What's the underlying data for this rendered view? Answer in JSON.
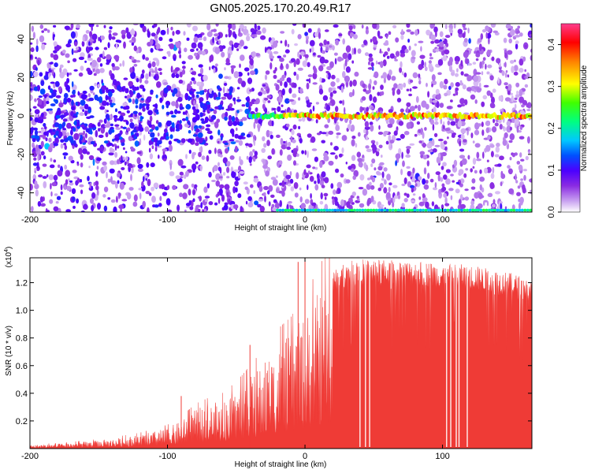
{
  "chart_data": [
    {
      "type": "heatmap",
      "title": "GN05.2025.170.20.49.R17",
      "xlabel": "Height of straight line (km)",
      "ylabel": "Frequency (Hz)",
      "xlim": [
        -200,
        165
      ],
      "ylim": [
        -50,
        48
      ],
      "xticks": [
        -200,
        -100,
        0,
        100
      ],
      "yticks": [
        -40,
        -20,
        0,
        20,
        40
      ],
      "colorbar": {
        "label": "Normalized spectral amplitude",
        "range": [
          0,
          0.45
        ],
        "ticks": [
          "0.0",
          "0.1",
          "0.2",
          "0.3",
          "0.4"
        ],
        "colormap": [
          "#ffffff",
          "#c8a0f0",
          "#8a2be2",
          "#4b00ff",
          "#0050ff",
          "#00c8ff",
          "#00ff80",
          "#40ff00",
          "#ffff00",
          "#ff8000",
          "#ff0000",
          "#ff3c8c"
        ]
      },
      "features": [
        {
          "name": "",
          "description": "horizontal band near 0 Hz for heights above about -40 km",
          "x_range": [
            -40,
            165
          ],
          "frequency": 0
        },
        {
          "name": "",
          "description": "band at lower edge near -50 Hz",
          "x_range": [
            -20,
            165
          ],
          "frequency": -49
        }
      ]
    },
    {
      "type": "area",
      "xlabel": "Height of straight line (km)",
      "ylabel": "SNR (10 * v/v)",
      "y_multiplier_label": "(x10^4)",
      "xlim": [
        -200,
        165
      ],
      "ylim": [
        0,
        13800
      ],
      "xticks": [
        -200,
        -100,
        0,
        100
      ],
      "yticks": [
        "0.2",
        "0.4",
        "0.6",
        "0.8",
        "1.0",
        "1.2"
      ],
      "color": "#ef3b36",
      "envelope": {
        "x": [
          -200,
          -180,
          -160,
          -140,
          -120,
          -100,
          -90,
          -80,
          -70,
          -60,
          -50,
          -40,
          -30,
          -20,
          -10,
          -5,
          0,
          5,
          10,
          20,
          30,
          40,
          50,
          60,
          70,
          80,
          90,
          100,
          110,
          120,
          130,
          140,
          150,
          160,
          165
        ],
        "y": [
          250,
          350,
          500,
          700,
          1000,
          1500,
          2000,
          2800,
          3200,
          3500,
          4200,
          5200,
          6300,
          7500,
          8300,
          9000,
          9800,
          10500,
          11500,
          12800,
          13500,
          13700,
          13700,
          13650,
          13600,
          13550,
          13500,
          13400,
          13350,
          13300,
          13100,
          12900,
          12700,
          12400,
          12200
        ]
      },
      "notable_peaks": [
        {
          "x": -90,
          "y": 3800
        },
        {
          "x": -40,
          "y": 7500
        },
        {
          "x": -5,
          "y": 13500
        },
        {
          "x": 0,
          "y": 13800
        }
      ],
      "dropouts_x": [
        40,
        44,
        47,
        103,
        106,
        110,
        112,
        118
      ]
    }
  ],
  "colors": {
    "heat_background": "#ffffff",
    "signal_red": "#ef3b36"
  }
}
